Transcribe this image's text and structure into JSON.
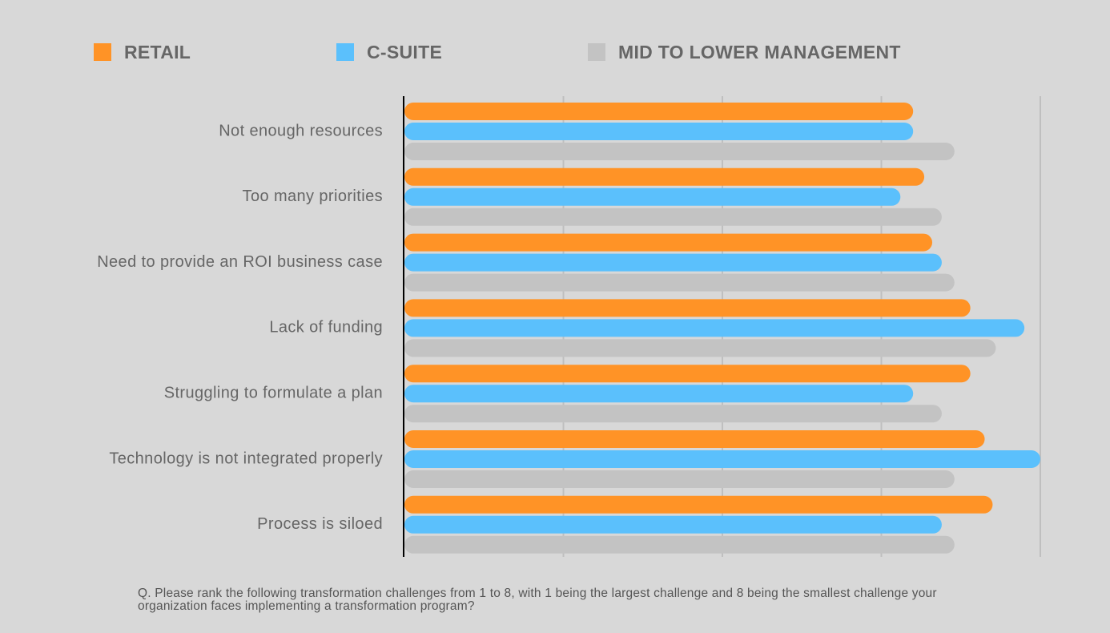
{
  "colors": {
    "background": "#d8d8d8",
    "retail": "#ff9326",
    "csuite": "#5bc0fc",
    "management": "#c3c3c3",
    "axis": "#000000",
    "grid": "#bfbfbf",
    "text": "#666666"
  },
  "legend": [
    {
      "label": "RETAIL",
      "color": "#ff9326"
    },
    {
      "label": "C-SUITE",
      "color": "#5bc0fc"
    },
    {
      "label": "MID TO LOWER MANAGEMENT",
      "color": "#c3c3c3"
    }
  ],
  "chart_data": {
    "type": "bar",
    "orientation": "horizontal",
    "categories": [
      "Not enough resources",
      "Too many priorities",
      "Need to provide an ROI business case",
      "Lack of funding",
      "Struggling to formulate a plan",
      "Technology is not integrated properly",
      "Process is siloed"
    ],
    "series": [
      {
        "name": "RETAIL",
        "values": [
          3.2,
          3.27,
          3.32,
          3.56,
          3.56,
          3.65,
          3.7
        ]
      },
      {
        "name": "C-SUITE",
        "values": [
          3.2,
          3.12,
          3.38,
          3.9,
          3.2,
          4.0,
          3.38
        ]
      },
      {
        "name": "MID TO LOWER MANAGEMENT",
        "values": [
          3.46,
          3.38,
          3.46,
          3.72,
          3.38,
          3.46,
          3.46
        ]
      }
    ],
    "xlim": [
      0,
      4
    ],
    "grid": true,
    "tick_labels_shown": false,
    "legend_position": "top"
  },
  "footnote": "Q. Please rank the following transformation challenges from 1 to 8, with 1 being the largest challenge and 8 being the smallest challenge your organization faces implementing a transformation program?"
}
